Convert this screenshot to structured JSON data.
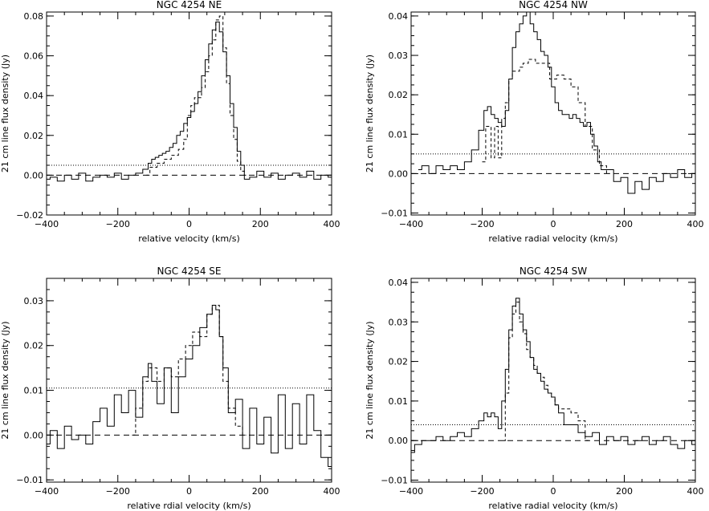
{
  "chart_data": [
    {
      "type": "line",
      "title": "NGC 4254 NE",
      "xlabel": "relative velocity (km/s)",
      "ylabel": "21 cm line flux density (Jy)",
      "xlim": [
        -400,
        400
      ],
      "ylim": [
        -0.02,
        0.082
      ],
      "xticks": [
        -400,
        -200,
        0,
        200,
        400
      ],
      "xtick_labels": [
        "−400",
        "−200",
        "0",
        "200",
        "400"
      ],
      "yticks": [
        -0.02,
        0.0,
        0.02,
        0.04,
        0.06,
        0.08
      ],
      "ytick_labels": [
        "−0.02",
        "0.00",
        "0.02",
        "0.04",
        "0.06",
        "0.08"
      ],
      "noise_level": 0.005,
      "series": [
        {
          "style": "solid",
          "x": [
            -400,
            -380,
            -360,
            -340,
            -320,
            -300,
            -280,
            -260,
            -240,
            -220,
            -200,
            -180,
            -160,
            -140,
            -120,
            -110,
            -100,
            -90,
            -80,
            -70,
            -60,
            -50,
            -40,
            -30,
            -20,
            -10,
            0,
            10,
            20,
            30,
            40,
            50,
            60,
            70,
            80,
            90,
            100,
            110,
            120,
            130,
            140,
            150,
            160,
            180,
            200,
            220,
            240,
            260,
            280,
            300,
            320,
            340,
            360,
            380,
            400
          ],
          "y": [
            -0.002,
            -0.001,
            -0.003,
            0.0,
            -0.002,
            0.001,
            -0.003,
            -0.001,
            0.0,
            -0.001,
            0.001,
            -0.002,
            0.0,
            0.001,
            0.003,
            0.006,
            0.008,
            0.009,
            0.01,
            0.011,
            0.012,
            0.014,
            0.016,
            0.02,
            0.022,
            0.026,
            0.029,
            0.032,
            0.036,
            0.042,
            0.05,
            0.058,
            0.066,
            0.073,
            0.077,
            0.072,
            0.062,
            0.05,
            0.036,
            0.024,
            0.012,
            0.005,
            -0.002,
            -0.001,
            0.002,
            -0.001,
            0.001,
            -0.002,
            0.0,
            0.001,
            -0.001,
            0.002,
            -0.002,
            0.0,
            -0.001
          ]
        },
        {
          "style": "dashed",
          "x": [
            -120,
            -100,
            -80,
            -60,
            -40,
            -20,
            -10,
            0,
            10,
            20,
            30,
            40,
            50,
            60,
            70,
            80,
            90,
            100,
            110,
            120,
            130,
            140,
            150,
            160
          ],
          "y": [
            0.0,
            0.004,
            0.006,
            0.008,
            0.01,
            0.013,
            0.018,
            0.03,
            0.035,
            0.039,
            0.039,
            0.044,
            0.052,
            0.06,
            0.068,
            0.078,
            0.08,
            0.064,
            0.046,
            0.03,
            0.018,
            0.007,
            0.002,
            0.0
          ]
        }
      ]
    },
    {
      "type": "line",
      "title": "NGC 4254 NW",
      "xlabel": "relative radial velocity (km/s)",
      "ylabel": "21 cm line flux density (Jy)",
      "xlim": [
        -400,
        400
      ],
      "ylim": [
        -0.0105,
        0.041
      ],
      "xticks": [
        -400,
        -200,
        0,
        200,
        400
      ],
      "xtick_labels": [
        "−400",
        "−200",
        "0",
        "200",
        "400"
      ],
      "yticks": [
        -0.01,
        0.0,
        0.01,
        0.02,
        0.03,
        0.04
      ],
      "ytick_labels": [
        "−0.01",
        "0.00",
        "0.01",
        "0.02",
        "0.03",
        "0.04"
      ],
      "noise_level": 0.005,
      "series": [
        {
          "style": "solid",
          "x": [
            -380,
            -360,
            -340,
            -320,
            -300,
            -280,
            -260,
            -240,
            -220,
            -200,
            -190,
            -180,
            -170,
            -160,
            -150,
            -140,
            -130,
            -120,
            -110,
            -100,
            -90,
            -80,
            -70,
            -60,
            -50,
            -40,
            -30,
            -20,
            -10,
            0,
            10,
            20,
            30,
            40,
            50,
            60,
            70,
            80,
            90,
            100,
            110,
            120,
            130,
            140,
            160,
            180,
            200,
            220,
            240,
            260,
            280,
            300,
            320,
            340,
            360,
            380,
            400
          ],
          "y": [
            0.001,
            0.002,
            0.0,
            0.002,
            0.001,
            0.002,
            0.001,
            0.003,
            0.006,
            0.011,
            0.016,
            0.017,
            0.015,
            0.014,
            0.013,
            0.012,
            0.016,
            0.024,
            0.032,
            0.036,
            0.038,
            0.04,
            0.041,
            0.038,
            0.036,
            0.034,
            0.031,
            0.03,
            0.027,
            0.022,
            0.018,
            0.016,
            0.015,
            0.015,
            0.014,
            0.015,
            0.014,
            0.013,
            0.012,
            0.013,
            0.01,
            0.007,
            0.003,
            0.001,
            0.001,
            -0.002,
            -0.001,
            -0.005,
            -0.002,
            -0.004,
            -0.001,
            -0.002,
            0.0,
            -0.001,
            0.001,
            -0.001,
            0.0
          ]
        },
        {
          "style": "dashed",
          "x": [
            -200,
            -180,
            -170,
            -160,
            -150,
            -140,
            -130,
            -120,
            -110,
            -100,
            -90,
            -80,
            -60,
            -40,
            -20,
            0,
            20,
            40,
            60,
            80,
            100,
            120,
            140,
            160
          ],
          "y": [
            0.003,
            0.012,
            0.004,
            0.012,
            0.004,
            0.014,
            0.018,
            0.024,
            0.026,
            0.026,
            0.027,
            0.028,
            0.029,
            0.028,
            0.028,
            0.024,
            0.025,
            0.024,
            0.022,
            0.018,
            0.012,
            0.006,
            0.002,
            0.0
          ]
        }
      ]
    },
    {
      "type": "line",
      "title": "NGC 4254 SE",
      "xlabel": "relative rdial velocity (km/s)",
      "ylabel": "21 cm line flux density (Jy)",
      "xlim": [
        -400,
        400
      ],
      "ylim": [
        -0.0105,
        0.035
      ],
      "xticks": [
        -400,
        -200,
        0,
        200,
        400
      ],
      "xtick_labels": [
        "−400",
        "−200",
        "0",
        "200",
        "400"
      ],
      "yticks": [
        -0.01,
        0.0,
        0.01,
        0.02,
        0.03
      ],
      "ytick_labels": [
        "−0.01",
        "0.00",
        "0.01",
        "0.02",
        "0.03"
      ],
      "noise_level": 0.0105,
      "series": [
        {
          "style": "solid",
          "x": [
            -400,
            -380,
            -360,
            -340,
            -320,
            -300,
            -280,
            -260,
            -240,
            -220,
            -200,
            -180,
            -160,
            -140,
            -120,
            -110,
            -100,
            -80,
            -60,
            -40,
            -20,
            0,
            20,
            40,
            60,
            70,
            80,
            90,
            100,
            120,
            140,
            160,
            180,
            200,
            220,
            240,
            260,
            280,
            300,
            320,
            340,
            360,
            380,
            400
          ],
          "y": [
            -0.002,
            0.001,
            -0.003,
            0.002,
            -0.001,
            0.0,
            -0.002,
            0.003,
            0.006,
            0.002,
            0.009,
            0.005,
            0.01,
            0.004,
            0.013,
            0.016,
            0.012,
            0.007,
            0.015,
            0.005,
            0.013,
            0.017,
            0.02,
            0.024,
            0.027,
            0.029,
            0.028,
            0.022,
            0.015,
            0.005,
            0.008,
            -0.003,
            0.006,
            -0.002,
            0.004,
            -0.004,
            0.009,
            -0.003,
            0.007,
            -0.002,
            0.009,
            0.001,
            -0.005,
            -0.007
          ]
        },
        {
          "style": "dashed",
          "x": [
            -160,
            -140,
            -120,
            -110,
            -100,
            -80,
            -60,
            -40,
            -20,
            0,
            20,
            40,
            60,
            70,
            80,
            90,
            100,
            120,
            140,
            160
          ],
          "y": [
            0.0,
            0.006,
            0.012,
            0.015,
            0.015,
            0.012,
            0.015,
            0.013,
            0.017,
            0.02,
            0.023,
            0.022,
            0.027,
            0.029,
            0.029,
            0.022,
            0.012,
            0.006,
            0.002,
            0.0
          ]
        }
      ]
    },
    {
      "type": "line",
      "title": "NGC 4254 SW",
      "xlabel": "relative radial velocity (km/s)",
      "ylabel": "21 cm line flux density (Jy)",
      "xlim": [
        -400,
        400
      ],
      "ylim": [
        -0.0105,
        0.041
      ],
      "xticks": [
        -400,
        -200,
        0,
        200,
        400
      ],
      "xtick_labels": [
        "−400",
        "−200",
        "0",
        "200",
        "400"
      ],
      "yticks": [
        -0.01,
        0.0,
        0.01,
        0.02,
        0.03,
        0.04
      ],
      "ytick_labels": [
        "−0.01",
        "0.00",
        "0.01",
        "0.02",
        "0.03",
        "0.04"
      ],
      "noise_level": 0.004,
      "series": [
        {
          "style": "solid",
          "x": [
            -400,
            -380,
            -360,
            -340,
            -320,
            -300,
            -280,
            -260,
            -240,
            -220,
            -200,
            -190,
            -180,
            -170,
            -160,
            -150,
            -140,
            -130,
            -120,
            -110,
            -100,
            -90,
            -80,
            -70,
            -60,
            -50,
            -40,
            -30,
            -20,
            -10,
            0,
            10,
            20,
            40,
            60,
            80,
            100,
            120,
            140,
            160,
            180,
            200,
            220,
            240,
            260,
            280,
            300,
            320,
            340,
            360,
            380,
            400
          ],
          "y": [
            -0.003,
            -0.001,
            0.0,
            0.0,
            0.001,
            0.0,
            0.001,
            0.002,
            0.001,
            0.003,
            0.005,
            0.007,
            0.006,
            0.007,
            0.006,
            0.003,
            0.01,
            0.018,
            0.028,
            0.034,
            0.036,
            0.032,
            0.028,
            0.025,
            0.021,
            0.018,
            0.017,
            0.015,
            0.013,
            0.012,
            0.011,
            0.009,
            0.007,
            0.004,
            0.004,
            0.002,
            0.001,
            0.002,
            -0.001,
            0.001,
            0.0,
            0.001,
            -0.001,
            0.0,
            0.001,
            -0.001,
            0.0,
            0.001,
            -0.001,
            -0.002,
            0.0,
            -0.001
          ]
        },
        {
          "style": "dashed",
          "x": [
            -140,
            -130,
            -120,
            -110,
            -100,
            -90,
            -80,
            -70,
            -60,
            -50,
            -40,
            -30,
            -20,
            -10,
            0,
            10,
            20,
            40,
            60,
            80,
            100
          ],
          "y": [
            0.0,
            0.012,
            0.026,
            0.032,
            0.035,
            0.03,
            0.027,
            0.023,
            0.021,
            0.019,
            0.017,
            0.016,
            0.014,
            0.012,
            0.011,
            0.009,
            0.008,
            0.008,
            0.007,
            0.005,
            0.0
          ]
        }
      ]
    }
  ]
}
